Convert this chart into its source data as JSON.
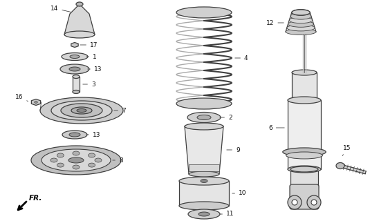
{
  "bg_color": "#ffffff",
  "line_color": "#404040",
  "label_color": "#111111",
  "fig_w": 5.35,
  "fig_h": 3.2,
  "dpi": 100
}
